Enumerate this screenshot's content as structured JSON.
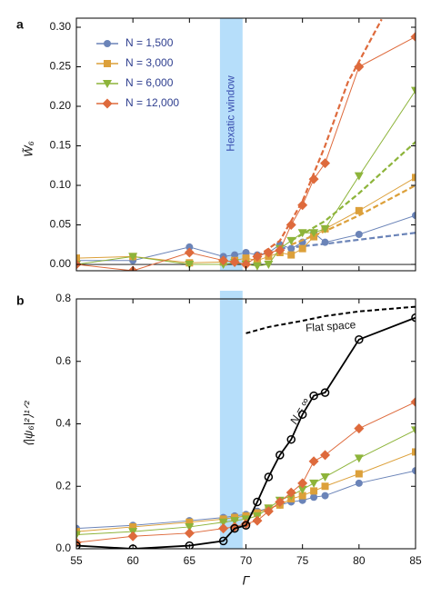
{
  "chart_data": [
    {
      "type": "line",
      "panel_label": "a",
      "ylabel": "W̃₆",
      "annotation": "Hexatic window",
      "shaded_region": [
        67.7,
        69.7
      ],
      "zero_line": true,
      "legend": "upper left",
      "xlim": [
        55,
        85
      ],
      "xticks": [
        55,
        60,
        65,
        70,
        75,
        80,
        85
      ],
      "ylim": [
        -0.008,
        0.3
      ],
      "yticks": [
        {
          "value": 0,
          "label": "0.00"
        },
        {
          "value": 0.05,
          "label": "0.05"
        },
        {
          "value": 0.1,
          "label": "0.10"
        },
        {
          "value": 0.15,
          "label": "0.15"
        },
        {
          "value": 0.2,
          "label": "0.20"
        },
        {
          "value": 0.25,
          "label": "0.25"
        },
        {
          "value": 0.3,
          "label": "0.30"
        }
      ],
      "x": [
        55,
        60,
        65,
        68,
        69,
        70,
        71,
        72,
        73,
        74,
        75,
        76,
        77,
        80,
        85
      ],
      "series": [
        {
          "name": "N = 1,500",
          "color": "#6b84b8",
          "marker": "circle",
          "values": [
            0.005,
            0.005,
            0.022,
            0.01,
            0.012,
            0.015,
            0.012,
            0.015,
            0.025,
            0.02,
            0.028,
            0.04,
            0.028,
            0.038,
            0.062
          ],
          "fit_x": [
            73,
            77,
            81,
            85
          ],
          "fit_values": [
            0.02,
            0.026,
            0.033,
            0.04
          ]
        },
        {
          "name": "N = 3,000",
          "color": "#dca03a",
          "marker": "square",
          "values": [
            0.008,
            0.01,
            0.002,
            0.003,
            0.005,
            0.008,
            0.005,
            0.01,
            0.015,
            0.012,
            0.02,
            0.035,
            0.045,
            0.068,
            0.11
          ],
          "fit_x": [
            74,
            77,
            80,
            85
          ],
          "fit_values": [
            0.025,
            0.042,
            0.062,
            0.1
          ]
        },
        {
          "name": "N = 6,000",
          "color": "#8db43a",
          "marker": "triangle",
          "values": [
            0.0,
            0.01,
            0.0,
            0.0,
            0.002,
            0.0,
            -0.002,
            0.0,
            0.02,
            0.03,
            0.04,
            0.04,
            0.045,
            0.112,
            0.22
          ],
          "fit_x": [
            74,
            77,
            80,
            85
          ],
          "fit_values": [
            0.03,
            0.055,
            0.09,
            0.155
          ]
        },
        {
          "name": "N = 12,000",
          "color": "#de6a3c",
          "marker": "diamond",
          "values": [
            0.0,
            -0.008,
            0.015,
            0.005,
            0.003,
            0.0,
            0.01,
            0.015,
            0.018,
            0.05,
            0.075,
            0.108,
            0.128,
            0.25,
            0.288
          ],
          "fit_x": [
            71,
            73,
            75,
            77,
            79,
            82
          ],
          "fit_values": [
            0.01,
            0.03,
            0.08,
            0.15,
            0.23,
            0.31
          ]
        }
      ]
    },
    {
      "type": "line",
      "panel_label": "b",
      "ylabel": "⟨|ψ₆|²⟩¹ᐟ²",
      "xlabel": "Γ",
      "shaded_region": [
        67.7,
        69.7
      ],
      "annotations": [
        {
          "text": "Flat space",
          "x": 77.5,
          "y": 0.71
        },
        {
          "text": "N = ∞",
          "x": 74.8,
          "y": 0.44
        }
      ],
      "xlim": [
        55,
        85
      ],
      "xticks": [
        55,
        60,
        65,
        70,
        75,
        80,
        85
      ],
      "ylim": [
        0,
        0.8
      ],
      "yticks": [
        {
          "value": 0,
          "label": "0.0"
        },
        0.2,
        0.4,
        0.6,
        0.8
      ],
      "x": [
        55,
        60,
        65,
        68,
        69,
        70,
        71,
        72,
        73,
        74,
        75,
        76,
        77,
        80,
        85
      ],
      "series": [
        {
          "name": "N = 1,500",
          "color": "#6b84b8",
          "marker": "circle",
          "values": [
            0.065,
            0.075,
            0.09,
            0.1,
            0.105,
            0.11,
            0.12,
            0.13,
            0.14,
            0.15,
            0.155,
            0.165,
            0.17,
            0.21,
            0.25
          ]
        },
        {
          "name": "N = 3,000",
          "color": "#dca03a",
          "marker": "square",
          "values": [
            0.055,
            0.07,
            0.085,
            0.095,
            0.1,
            0.105,
            0.115,
            0.13,
            0.14,
            0.16,
            0.17,
            0.185,
            0.2,
            0.24,
            0.31
          ]
        },
        {
          "name": "N = 6,000",
          "color": "#8db43a",
          "marker": "triangle",
          "values": [
            0.045,
            0.055,
            0.07,
            0.085,
            0.09,
            0.095,
            0.105,
            0.13,
            0.155,
            0.17,
            0.19,
            0.21,
            0.23,
            0.29,
            0.38
          ]
        },
        {
          "name": "N = 12,000",
          "color": "#de6a3c",
          "marker": "diamond",
          "values": [
            0.02,
            0.04,
            0.05,
            0.065,
            0.07,
            0.08,
            0.09,
            0.12,
            0.15,
            0.18,
            0.21,
            0.28,
            0.3,
            0.385,
            0.47
          ]
        },
        {
          "name": "N = ∞",
          "color": "#000000",
          "marker": "open-circle",
          "values": [
            0.01,
            0.0,
            0.01,
            0.025,
            0.065,
            0.075,
            0.15,
            0.23,
            0.3,
            0.35,
            0.43,
            0.49,
            0.5,
            0.67,
            0.74
          ]
        },
        {
          "name": "Flat space",
          "color": "#000000",
          "dashed": true,
          "x": [
            70,
            72,
            75,
            77,
            80,
            85
          ],
          "values": [
            0.69,
            0.71,
            0.73,
            0.745,
            0.76,
            0.775
          ]
        }
      ]
    }
  ]
}
